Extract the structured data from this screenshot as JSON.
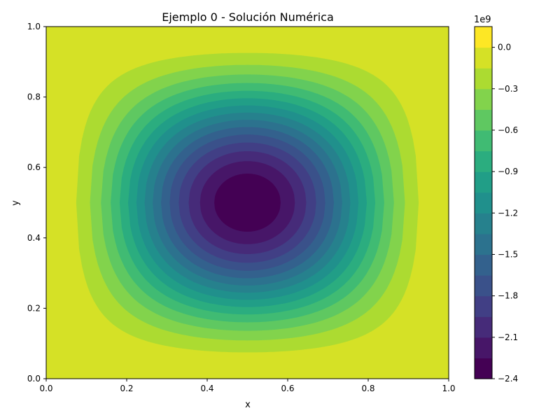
{
  "chart_data": {
    "type": "heatmap",
    "subtype": "filled-contour",
    "title": "Ejemplo 0 - Solución Numérica",
    "xlabel": "x",
    "ylabel": "y",
    "xlim": [
      0.0,
      1.0
    ],
    "ylim": [
      0.0,
      1.0
    ],
    "x_ticks": [
      "0.0",
      "0.2",
      "0.4",
      "0.6",
      "0.8",
      "1.0"
    ],
    "y_ticks": [
      "0.0",
      "0.2",
      "0.4",
      "0.6",
      "0.8",
      "1.0"
    ],
    "grid": false,
    "colormap": "viridis",
    "colorbar": {
      "multiplier": "1e9",
      "scale": 1000000000,
      "min": -2.4,
      "max": 0.15,
      "levels": [
        -2.4,
        -2.25,
        -2.1,
        -1.95,
        -1.8,
        -1.65,
        -1.5,
        -1.35,
        -1.2,
        -1.05,
        -0.9,
        -0.75,
        -0.6,
        -0.45,
        -0.3,
        -0.15,
        0.0,
        0.15
      ],
      "tick_values": [
        -2.4,
        -2.1,
        -1.8,
        -1.5,
        -1.2,
        -0.9,
        -0.6,
        -0.3,
        0.0
      ],
      "tick_labels": [
        "−2.4",
        "−2.1",
        "−1.8",
        "−1.5",
        "−1.2",
        "−0.9",
        "−0.6",
        "−0.3",
        "0.0"
      ]
    },
    "field": {
      "center": [
        0.5,
        0.5
      ],
      "min_value": -2.4,
      "boundary_value": 0.0,
      "shape": "sin-product",
      "exponent": 1.9
    }
  }
}
